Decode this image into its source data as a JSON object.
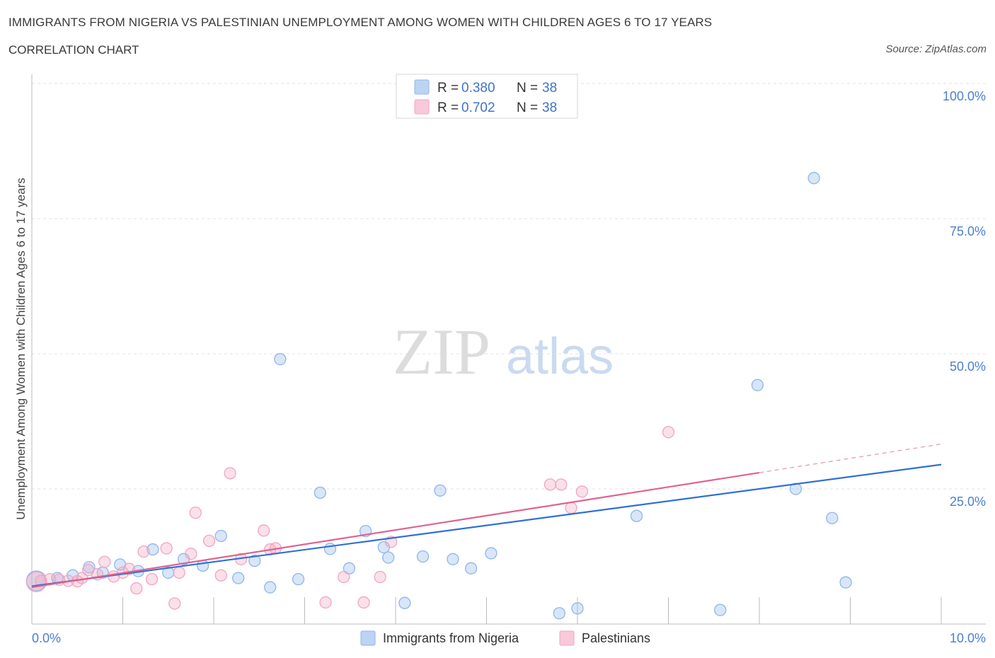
{
  "header": {
    "title": "IMMIGRANTS FROM NIGERIA VS PALESTINIAN UNEMPLOYMENT AMONG WOMEN WITH CHILDREN AGES 6 TO 17 YEARS",
    "subtitle": "CORRELATION CHART",
    "source": "Source: ZipAtlas.com"
  },
  "watermark": {
    "zip": "ZIP",
    "atlas": "atlas"
  },
  "legend": {
    "r_label": "R =",
    "n_label": "N =",
    "rows": [
      {
        "r": "0.380",
        "n": "38"
      },
      {
        "r": "0.702",
        "n": "38"
      }
    ]
  },
  "chart_data": {
    "type": "scatter",
    "title": "IMMIGRANTS FROM NIGERIA VS PALESTINIAN UNEMPLOYMENT AMONG WOMEN WITH CHILDREN AGES 6 TO 17 YEARS",
    "ylabel": "Unemployment Among Women with Children Ages 6 to 17 years",
    "xlabel": "",
    "xlim": [
      0,
      10
    ],
    "ylim": [
      0,
      100
    ],
    "x_tick_labels": [
      "0.0%",
      "10.0%"
    ],
    "y_tick_labels": [
      "100.0%",
      "75.0%",
      "50.0%",
      "25.0%"
    ],
    "y_ticks": [
      100,
      75,
      50,
      25
    ],
    "grid": true,
    "series": [
      {
        "name": "Immigrants from Nigeria",
        "color": "#8fb6ea",
        "trend_color": "#2f6fd6",
        "trend": {
          "x0": 0,
          "y0": 7.0,
          "x1": 10,
          "y1": 29.5
        },
        "points": [
          [
            0.05,
            8.0
          ],
          [
            0.28,
            8.5
          ],
          [
            0.45,
            9.0
          ],
          [
            0.63,
            10.5
          ],
          [
            0.78,
            9.5
          ],
          [
            0.97,
            11.0
          ],
          [
            1.17,
            9.8
          ],
          [
            1.33,
            13.8
          ],
          [
            1.5,
            9.5
          ],
          [
            1.67,
            12.0
          ],
          [
            1.88,
            10.8
          ],
          [
            2.08,
            16.3
          ],
          [
            2.27,
            8.5
          ],
          [
            2.45,
            11.7
          ],
          [
            2.62,
            6.8
          ],
          [
            2.73,
            49.0
          ],
          [
            2.93,
            8.3
          ],
          [
            3.17,
            24.3
          ],
          [
            3.28,
            13.9
          ],
          [
            3.49,
            10.3
          ],
          [
            3.67,
            17.2
          ],
          [
            3.87,
            14.2
          ],
          [
            3.92,
            12.3
          ],
          [
            4.1,
            3.9
          ],
          [
            4.3,
            12.5
          ],
          [
            4.49,
            24.7
          ],
          [
            4.63,
            12.0
          ],
          [
            4.83,
            10.3
          ],
          [
            5.05,
            13.1
          ],
          [
            5.8,
            2.0
          ],
          [
            6.0,
            2.9
          ],
          [
            6.65,
            20.0
          ],
          [
            7.57,
            2.6
          ],
          [
            7.98,
            44.2
          ],
          [
            8.4,
            25.0
          ],
          [
            8.8,
            19.6
          ],
          [
            8.95,
            7.7
          ],
          [
            8.6,
            82.5
          ]
        ]
      },
      {
        "name": "Palestinians",
        "color": "#f2a5c0",
        "trend_color": "#e0628f",
        "trend": {
          "x0": 0,
          "y0": 6.8,
          "x1": 8.0,
          "y1": 28.0
        },
        "trend_extension": {
          "x0": 8.0,
          "y0": 28.0,
          "x1": 10,
          "y1": 33.3
        },
        "points": [
          [
            0.05,
            7.8
          ],
          [
            0.3,
            8.2
          ],
          [
            0.4,
            8.0
          ],
          [
            0.55,
            8.5
          ],
          [
            0.62,
            10.0
          ],
          [
            0.72,
            9.2
          ],
          [
            0.8,
            11.5
          ],
          [
            0.9,
            8.8
          ],
          [
            1.0,
            9.5
          ],
          [
            1.07,
            10.2
          ],
          [
            1.15,
            6.6
          ],
          [
            1.23,
            13.4
          ],
          [
            1.32,
            8.3
          ],
          [
            1.48,
            14.0
          ],
          [
            1.57,
            3.8
          ],
          [
            1.62,
            9.5
          ],
          [
            1.75,
            13.0
          ],
          [
            1.8,
            20.6
          ],
          [
            1.95,
            15.4
          ],
          [
            2.08,
            9.0
          ],
          [
            2.18,
            27.9
          ],
          [
            2.3,
            12.0
          ],
          [
            2.55,
            17.3
          ],
          [
            2.62,
            13.8
          ],
          [
            2.68,
            14.0
          ],
          [
            3.23,
            4.0
          ],
          [
            3.43,
            8.7
          ],
          [
            3.65,
            4.0
          ],
          [
            3.83,
            8.7
          ],
          [
            3.95,
            15.2
          ],
          [
            5.7,
            25.8
          ],
          [
            5.82,
            25.8
          ],
          [
            5.93,
            21.5
          ],
          [
            6.05,
            24.5
          ],
          [
            7.0,
            35.5
          ],
          [
            0.1,
            8.0
          ],
          [
            0.2,
            8.3
          ],
          [
            0.5,
            7.9
          ]
        ]
      }
    ]
  }
}
